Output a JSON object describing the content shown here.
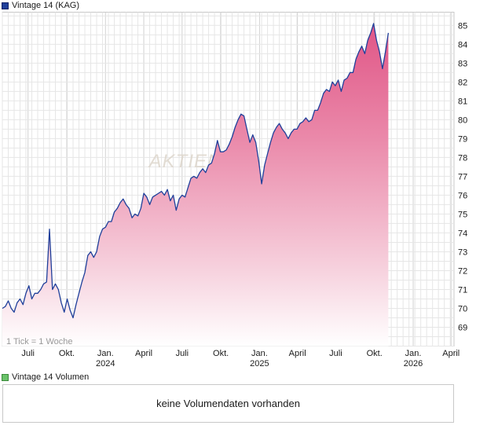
{
  "chart_data": {
    "type": "area",
    "legend": "Vintage 14 (KAG)",
    "tick_note": "1 Tick = 1 Woche",
    "watermark": "AKTIEN",
    "ylim": [
      68,
      85.7
    ],
    "y_ticks": [
      69,
      70,
      71,
      72,
      73,
      74,
      75,
      76,
      77,
      78,
      79,
      80,
      81,
      82,
      83,
      84,
      85
    ],
    "x_ticks": [
      {
        "date": "2023-07-01",
        "label": "Juli",
        "year": ""
      },
      {
        "date": "2023-10-01",
        "label": "Okt.",
        "year": ""
      },
      {
        "date": "2024-01-01",
        "label": "Jan.",
        "year": "2024"
      },
      {
        "date": "2024-04-01",
        "label": "April",
        "year": ""
      },
      {
        "date": "2024-07-01",
        "label": "Juli",
        "year": ""
      },
      {
        "date": "2024-10-01",
        "label": "Okt.",
        "year": ""
      },
      {
        "date": "2025-01-01",
        "label": "Jan.",
        "year": "2025"
      },
      {
        "date": "2025-04-01",
        "label": "April",
        "year": ""
      },
      {
        "date": "2025-07-01",
        "label": "Juli",
        "year": ""
      },
      {
        "date": "2025-10-01",
        "label": "Okt.",
        "year": ""
      },
      {
        "date": "2026-01-01",
        "label": "Jan.",
        "year": "2026"
      },
      {
        "date": "2026-04-01",
        "label": "April",
        "year": ""
      }
    ],
    "series": [
      {
        "name": "Vintage 14 (KAG)",
        "points": [
          [
            "2023-05-01",
            70.0
          ],
          [
            "2023-05-08",
            70.1
          ],
          [
            "2023-05-15",
            70.4
          ],
          [
            "2023-05-22",
            70.0
          ],
          [
            "2023-05-29",
            69.8
          ],
          [
            "2023-06-05",
            70.3
          ],
          [
            "2023-06-12",
            70.5
          ],
          [
            "2023-06-19",
            70.2
          ],
          [
            "2023-06-26",
            70.8
          ],
          [
            "2023-07-03",
            71.2
          ],
          [
            "2023-07-10",
            70.5
          ],
          [
            "2023-07-17",
            70.8
          ],
          [
            "2023-07-24",
            70.8
          ],
          [
            "2023-07-31",
            71.0
          ],
          [
            "2023-08-07",
            71.3
          ],
          [
            "2023-08-14",
            71.4
          ],
          [
            "2023-08-21",
            74.2
          ],
          [
            "2023-08-28",
            71.0
          ],
          [
            "2023-09-04",
            71.3
          ],
          [
            "2023-09-11",
            71.0
          ],
          [
            "2023-09-18",
            70.3
          ],
          [
            "2023-09-25",
            69.8
          ],
          [
            "2023-10-02",
            70.5
          ],
          [
            "2023-10-09",
            69.9
          ],
          [
            "2023-10-16",
            69.5
          ],
          [
            "2023-10-23",
            70.2
          ],
          [
            "2023-10-30",
            70.8
          ],
          [
            "2023-11-06",
            71.4
          ],
          [
            "2023-11-13",
            71.9
          ],
          [
            "2023-11-20",
            72.8
          ],
          [
            "2023-11-27",
            73.0
          ],
          [
            "2023-12-04",
            72.7
          ],
          [
            "2023-12-11",
            73.0
          ],
          [
            "2023-12-18",
            73.8
          ],
          [
            "2023-12-25",
            74.2
          ],
          [
            "2024-01-01",
            74.3
          ],
          [
            "2024-01-08",
            74.6
          ],
          [
            "2024-01-15",
            74.6
          ],
          [
            "2024-01-22",
            75.1
          ],
          [
            "2024-01-29",
            75.3
          ],
          [
            "2024-02-05",
            75.6
          ],
          [
            "2024-02-12",
            75.8
          ],
          [
            "2024-02-19",
            75.5
          ],
          [
            "2024-02-26",
            75.3
          ],
          [
            "2024-03-04",
            74.8
          ],
          [
            "2024-03-11",
            75.0
          ],
          [
            "2024-03-18",
            74.9
          ],
          [
            "2024-03-25",
            75.3
          ],
          [
            "2024-04-01",
            76.1
          ],
          [
            "2024-04-08",
            75.9
          ],
          [
            "2024-04-15",
            75.5
          ],
          [
            "2024-04-22",
            75.9
          ],
          [
            "2024-04-29",
            76.0
          ],
          [
            "2024-05-06",
            76.1
          ],
          [
            "2024-05-13",
            76.2
          ],
          [
            "2024-05-20",
            76.0
          ],
          [
            "2024-05-27",
            76.3
          ],
          [
            "2024-06-03",
            75.7
          ],
          [
            "2024-06-10",
            76.0
          ],
          [
            "2024-06-17",
            75.2
          ],
          [
            "2024-06-24",
            75.8
          ],
          [
            "2024-07-01",
            76.0
          ],
          [
            "2024-07-08",
            75.9
          ],
          [
            "2024-07-15",
            76.4
          ],
          [
            "2024-07-22",
            76.9
          ],
          [
            "2024-07-29",
            77.0
          ],
          [
            "2024-08-05",
            76.9
          ],
          [
            "2024-08-12",
            77.2
          ],
          [
            "2024-08-19",
            77.4
          ],
          [
            "2024-08-26",
            77.2
          ],
          [
            "2024-09-02",
            77.6
          ],
          [
            "2024-09-09",
            77.7
          ],
          [
            "2024-09-16",
            78.2
          ],
          [
            "2024-09-23",
            78.9
          ],
          [
            "2024-09-30",
            78.3
          ],
          [
            "2024-10-07",
            78.3
          ],
          [
            "2024-10-14",
            78.4
          ],
          [
            "2024-10-21",
            78.7
          ],
          [
            "2024-10-28",
            79.1
          ],
          [
            "2024-11-04",
            79.6
          ],
          [
            "2024-11-11",
            80.0
          ],
          [
            "2024-11-18",
            80.3
          ],
          [
            "2024-11-25",
            80.2
          ],
          [
            "2024-12-02",
            79.5
          ],
          [
            "2024-12-09",
            78.8
          ],
          [
            "2024-12-16",
            79.2
          ],
          [
            "2024-12-23",
            78.8
          ],
          [
            "2024-12-30",
            77.8
          ],
          [
            "2025-01-06",
            76.6
          ],
          [
            "2025-01-13",
            77.6
          ],
          [
            "2025-01-20",
            78.2
          ],
          [
            "2025-01-27",
            78.8
          ],
          [
            "2025-02-03",
            79.3
          ],
          [
            "2025-02-10",
            79.6
          ],
          [
            "2025-02-17",
            79.8
          ],
          [
            "2025-02-24",
            79.5
          ],
          [
            "2025-03-03",
            79.3
          ],
          [
            "2025-03-10",
            79.0
          ],
          [
            "2025-03-17",
            79.3
          ],
          [
            "2025-03-24",
            79.5
          ],
          [
            "2025-03-31",
            79.5
          ],
          [
            "2025-04-07",
            79.8
          ],
          [
            "2025-04-14",
            79.9
          ],
          [
            "2025-04-21",
            80.1
          ],
          [
            "2025-04-28",
            79.9
          ],
          [
            "2025-05-05",
            80.0
          ],
          [
            "2025-05-12",
            80.5
          ],
          [
            "2025-05-19",
            80.5
          ],
          [
            "2025-05-26",
            80.9
          ],
          [
            "2025-06-02",
            81.4
          ],
          [
            "2025-06-09",
            81.6
          ],
          [
            "2025-06-16",
            81.5
          ],
          [
            "2025-06-23",
            82.0
          ],
          [
            "2025-06-30",
            81.8
          ],
          [
            "2025-07-07",
            82.1
          ],
          [
            "2025-07-14",
            81.5
          ],
          [
            "2025-07-21",
            82.1
          ],
          [
            "2025-07-28",
            82.2
          ],
          [
            "2025-08-04",
            82.5
          ],
          [
            "2025-08-11",
            82.5
          ],
          [
            "2025-08-18",
            83.2
          ],
          [
            "2025-08-25",
            83.6
          ],
          [
            "2025-09-01",
            83.9
          ],
          [
            "2025-09-08",
            83.5
          ],
          [
            "2025-09-15",
            84.2
          ],
          [
            "2025-09-22",
            84.6
          ],
          [
            "2025-09-29",
            85.1
          ],
          [
            "2025-10-06",
            84.2
          ],
          [
            "2025-10-13",
            83.6
          ],
          [
            "2025-10-20",
            82.7
          ],
          [
            "2025-10-27",
            83.6
          ],
          [
            "2025-11-03",
            84.6
          ]
        ]
      }
    ],
    "volume_legend": "Vintage 14 Volumen",
    "volume_message": "keine Volumendaten vorhanden"
  }
}
